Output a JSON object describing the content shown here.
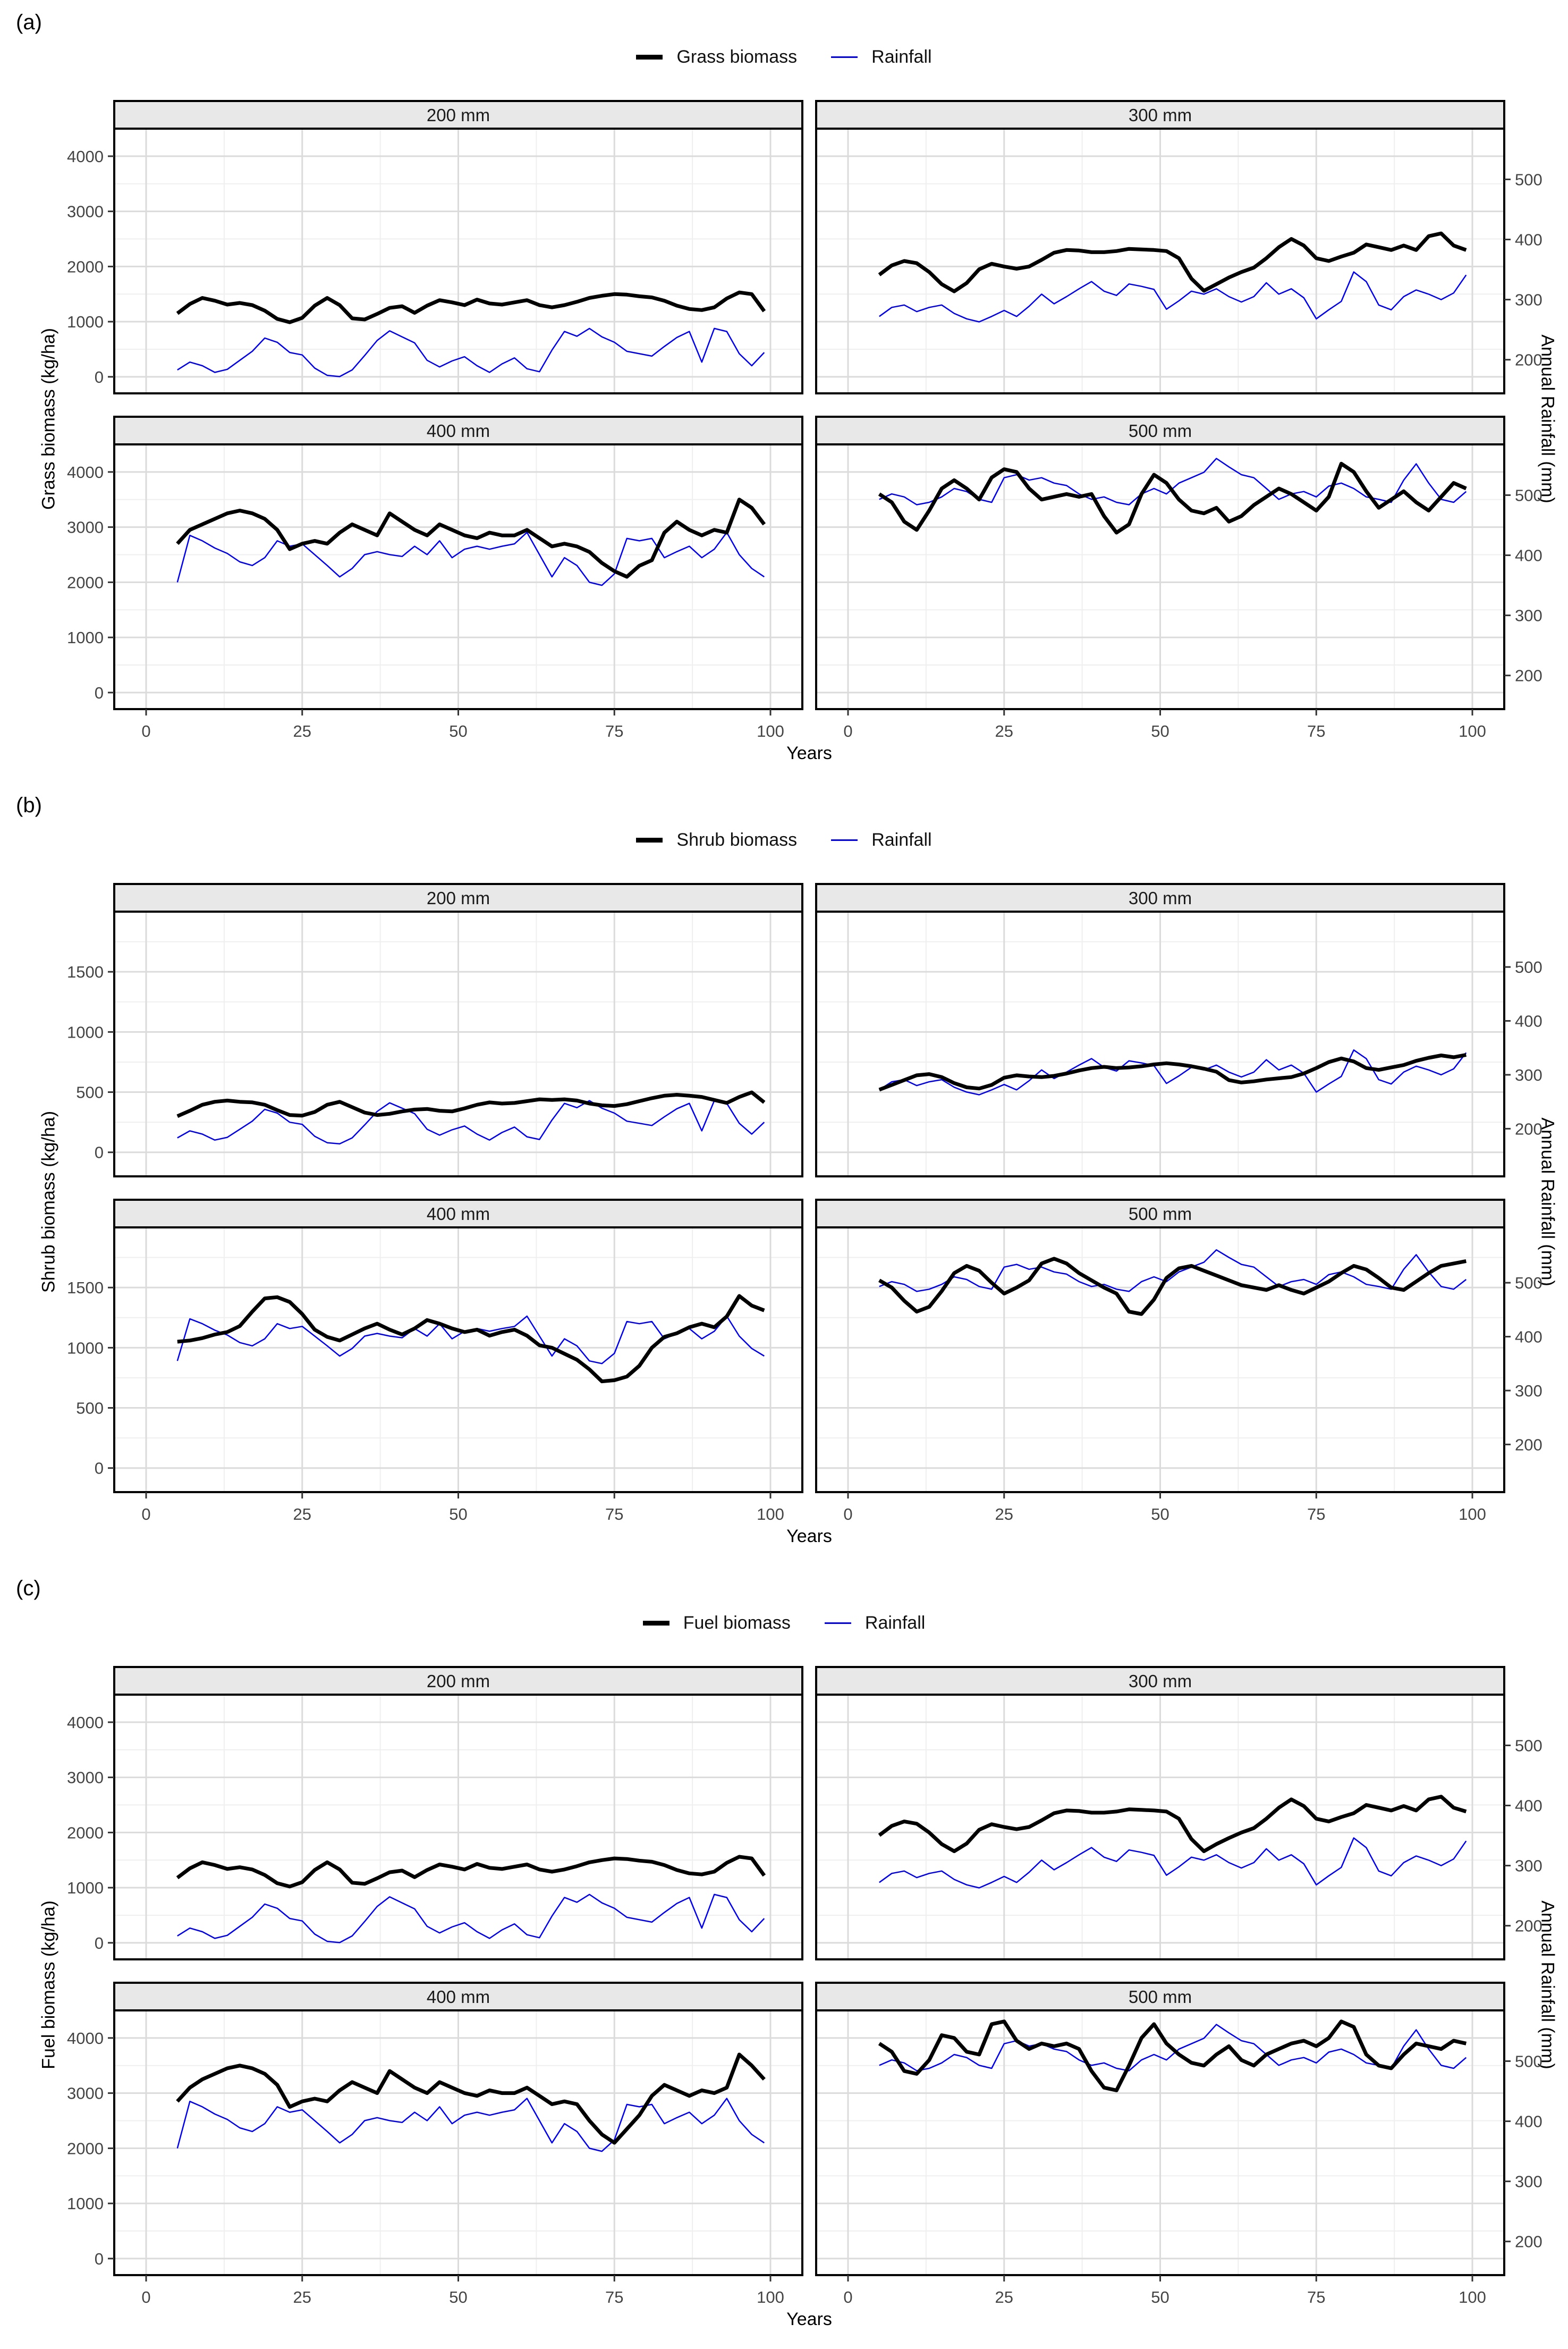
{
  "chart_data": {
    "type": "line",
    "x": {
      "label": "Years",
      "ticks": [
        0,
        25,
        50,
        75,
        100
      ],
      "range": [
        0,
        100
      ]
    },
    "right_axis": {
      "label": "Annual Rainfall (mm)",
      "ticks": [
        200,
        300,
        400,
        500
      ]
    },
    "legend_rainfall": "Rainfall",
    "facet_order": [
      "200 mm",
      "300 mm",
      "400 mm",
      "500 mm"
    ],
    "colors": {
      "biomass": "#000000",
      "rainfall": "#0000EE"
    },
    "grid": {
      "major": "#DBDBDB",
      "minor": "#EFEFEF",
      "strip_bg": "#E8E8E8",
      "tick_text": "#444444"
    },
    "years": [
      5,
      7,
      9,
      11,
      13,
      15,
      17,
      19,
      21,
      23,
      25,
      27,
      29,
      31,
      33,
      35,
      37,
      39,
      41,
      43,
      45,
      47,
      49,
      51,
      53,
      55,
      57,
      59,
      61,
      63,
      65,
      67,
      69,
      71,
      73,
      75,
      77,
      79,
      81,
      83,
      85,
      87,
      89,
      91,
      93,
      95,
      97,
      99
    ],
    "rainfall_mm": {
      "200 mm": [
        183,
        196,
        190,
        179,
        184,
        199,
        214,
        236,
        229,
        212,
        208,
        186,
        174,
        172,
        183,
        207,
        232,
        248,
        238,
        228,
        199,
        188,
        198,
        205,
        190,
        179,
        193,
        203,
        185,
        180,
        216,
        247,
        239,
        252,
        238,
        229,
        214,
        210,
        206,
        222,
        237,
        247,
        196,
        252,
        247,
        210,
        190,
        212
      ],
      "300 mm": [
        272,
        287,
        291,
        280,
        287,
        291,
        277,
        268,
        263,
        272,
        282,
        272,
        289,
        309,
        293,
        305,
        318,
        330,
        314,
        307,
        326,
        322,
        317,
        284,
        298,
        314,
        309,
        318,
        305,
        296,
        305,
        328,
        309,
        318,
        303,
        268,
        283,
        297,
        346,
        330,
        291,
        283,
        305,
        316,
        309,
        300,
        311,
        341
      ],
      "400 mm": [
        355,
        433,
        424,
        412,
        403,
        389,
        383,
        396,
        424,
        415,
        419,
        401,
        383,
        364,
        378,
        401,
        406,
        401,
        398,
        415,
        401,
        424,
        396,
        410,
        415,
        410,
        415,
        419,
        438,
        401,
        364,
        396,
        383,
        355,
        350,
        369,
        428,
        424,
        428,
        396,
        406,
        415,
        396,
        410,
        438,
        401,
        378,
        364
      ],
      "500 mm": [
        493,
        502,
        497,
        484,
        488,
        497,
        511,
        506,
        493,
        488,
        529,
        534,
        525,
        529,
        520,
        516,
        502,
        493,
        497,
        488,
        484,
        502,
        511,
        502,
        520,
        529,
        538,
        561,
        547,
        534,
        529,
        511,
        493,
        502,
        506,
        497,
        515,
        520,
        511,
        497,
        493,
        488,
        525,
        552,
        520,
        493,
        488,
        506
      ]
    },
    "panels": [
      {
        "label": "(a)",
        "series_name": "Grass biomass",
        "ylabel": "Grass biomass (kg/ha)",
        "left_ticks": [
          0,
          1000,
          2000,
          3000,
          4000
        ],
        "left_range": [
          -300,
          4500
        ],
        "rain_transform": {
          "slope": 10.9,
          "intercept": -1870
        },
        "biomass": {
          "200 mm": [
            1150,
            1320,
            1430,
            1380,
            1310,
            1340,
            1300,
            1200,
            1050,
            990,
            1070,
            1290,
            1430,
            1300,
            1060,
            1040,
            1140,
            1250,
            1280,
            1160,
            1290,
            1390,
            1350,
            1300,
            1400,
            1330,
            1310,
            1350,
            1390,
            1300,
            1260,
            1300,
            1360,
            1430,
            1470,
            1500,
            1490,
            1460,
            1440,
            1380,
            1290,
            1230,
            1210,
            1260,
            1420,
            1530,
            1500,
            1190
          ],
          "300 mm": [
            1850,
            2020,
            2100,
            2060,
            1900,
            1680,
            1550,
            1700,
            1950,
            2050,
            2000,
            1960,
            2000,
            2120,
            2250,
            2300,
            2290,
            2260,
            2260,
            2280,
            2320,
            2310,
            2300,
            2280,
            2150,
            1780,
            1560,
            1680,
            1800,
            1900,
            1980,
            2150,
            2350,
            2500,
            2380,
            2150,
            2100,
            2180,
            2250,
            2400,
            2350,
            2300,
            2380,
            2300,
            2550,
            2600,
            2380,
            2300
          ],
          "400 mm": [
            2700,
            2950,
            3050,
            3150,
            3250,
            3300,
            3250,
            3150,
            2950,
            2600,
            2700,
            2750,
            2700,
            2900,
            3050,
            2950,
            2850,
            3250,
            3100,
            2950,
            2850,
            3050,
            2950,
            2850,
            2800,
            2900,
            2850,
            2850,
            2950,
            2800,
            2650,
            2700,
            2650,
            2550,
            2350,
            2200,
            2100,
            2300,
            2400,
            2900,
            3100,
            2950,
            2850,
            2950,
            2900,
            3500,
            3350,
            3050
          ],
          "500 mm": [
            3600,
            3450,
            3100,
            2950,
            3300,
            3700,
            3850,
            3700,
            3500,
            3900,
            4050,
            4000,
            3700,
            3500,
            3550,
            3600,
            3550,
            3600,
            3200,
            2900,
            3050,
            3600,
            3950,
            3800,
            3500,
            3300,
            3250,
            3350,
            3100,
            3200,
            3400,
            3550,
            3700,
            3600,
            3450,
            3300,
            3550,
            4150,
            4000,
            3650,
            3350,
            3500,
            3650,
            3450,
            3300,
            3550,
            3800,
            3700
          ]
        }
      },
      {
        "label": "(b)",
        "series_name": "Shrub biomass",
        "ylabel": "Shrub biomass (kg/ha)",
        "left_ticks": [
          0,
          500,
          1000,
          1500
        ],
        "left_range": [
          -200,
          2000
        ],
        "rain_transform": {
          "slope": 4.48,
          "intercept": -700
        },
        "biomass": {
          "200 mm": [
            300,
            345,
            395,
            420,
            430,
            420,
            415,
            395,
            350,
            310,
            305,
            335,
            395,
            420,
            375,
            330,
            310,
            320,
            340,
            355,
            360,
            345,
            340,
            365,
            395,
            415,
            405,
            410,
            425,
            440,
            435,
            440,
            430,
            405,
            390,
            385,
            400,
            425,
            450,
            470,
            478,
            470,
            460,
            435,
            410,
            460,
            498,
            415
          ],
          "300 mm": [
            520,
            560,
            600,
            640,
            650,
            625,
            575,
            540,
            530,
            560,
            620,
            640,
            630,
            625,
            635,
            655,
            680,
            700,
            710,
            700,
            705,
            715,
            730,
            740,
            730,
            715,
            695,
            670,
            600,
            580,
            590,
            605,
            615,
            625,
            655,
            700,
            750,
            780,
            755,
            700,
            685,
            705,
            725,
            760,
            785,
            805,
            790,
            810
          ],
          "400 mm": [
            1050,
            1060,
            1080,
            1110,
            1130,
            1180,
            1300,
            1410,
            1420,
            1380,
            1280,
            1150,
            1090,
            1060,
            1110,
            1160,
            1200,
            1150,
            1110,
            1160,
            1230,
            1200,
            1160,
            1130,
            1150,
            1100,
            1130,
            1150,
            1100,
            1020,
            1000,
            950,
            900,
            820,
            720,
            730,
            760,
            850,
            1000,
            1090,
            1120,
            1170,
            1200,
            1170,
            1260,
            1430,
            1350,
            1310
          ],
          "500 mm": [
            1560,
            1500,
            1390,
            1300,
            1340,
            1470,
            1620,
            1680,
            1640,
            1540,
            1450,
            1500,
            1560,
            1700,
            1740,
            1700,
            1620,
            1560,
            1500,
            1450,
            1300,
            1280,
            1400,
            1580,
            1660,
            1680,
            1640,
            1600,
            1560,
            1520,
            1500,
            1480,
            1520,
            1480,
            1450,
            1500,
            1550,
            1620,
            1680,
            1650,
            1580,
            1500,
            1480,
            1550,
            1620,
            1680,
            1700,
            1720
          ]
        }
      },
      {
        "label": "(c)",
        "series_name": "Fuel biomass",
        "ylabel": "Fuel biomass (kg/ha)",
        "left_ticks": [
          0,
          1000,
          2000,
          3000,
          4000
        ],
        "left_range": [
          -300,
          4500
        ],
        "rain_transform": {
          "slope": 10.9,
          "intercept": -1870
        },
        "biomass": {
          "200 mm": [
            1180,
            1350,
            1460,
            1410,
            1340,
            1370,
            1330,
            1230,
            1080,
            1020,
            1100,
            1320,
            1460,
            1330,
            1090,
            1070,
            1170,
            1280,
            1310,
            1190,
            1320,
            1420,
            1380,
            1330,
            1430,
            1360,
            1340,
            1380,
            1420,
            1330,
            1290,
            1330,
            1390,
            1460,
            1500,
            1530,
            1520,
            1490,
            1470,
            1410,
            1320,
            1260,
            1240,
            1290,
            1450,
            1560,
            1530,
            1220
          ],
          "300 mm": [
            1950,
            2120,
            2200,
            2160,
            2000,
            1790,
            1660,
            1800,
            2050,
            2150,
            2100,
            2060,
            2100,
            2220,
            2350,
            2400,
            2390,
            2360,
            2360,
            2380,
            2420,
            2410,
            2400,
            2380,
            2250,
            1880,
            1660,
            1790,
            1900,
            2000,
            2080,
            2250,
            2450,
            2600,
            2480,
            2250,
            2200,
            2280,
            2350,
            2500,
            2450,
            2400,
            2480,
            2400,
            2600,
            2650,
            2450,
            2380
          ],
          "400 mm": [
            2850,
            3100,
            3250,
            3350,
            3450,
            3500,
            3450,
            3350,
            3150,
            2750,
            2850,
            2900,
            2850,
            3050,
            3200,
            3100,
            3000,
            3400,
            3250,
            3100,
            3000,
            3200,
            3100,
            3000,
            2950,
            3050,
            3000,
            3000,
            3100,
            2950,
            2800,
            2850,
            2800,
            2500,
            2250,
            2100,
            2350,
            2600,
            2950,
            3150,
            3050,
            2950,
            3050,
            3000,
            3100,
            3700,
            3500,
            3250
          ],
          "500 mm": [
            3900,
            3750,
            3400,
            3350,
            3600,
            4050,
            4000,
            3750,
            3700,
            4250,
            4300,
            3950,
            3800,
            3900,
            3850,
            3900,
            3800,
            3400,
            3100,
            3050,
            3500,
            4000,
            4250,
            3900,
            3700,
            3550,
            3500,
            3700,
            3850,
            3600,
            3500,
            3700,
            3800,
            3900,
            3950,
            3850,
            4000,
            4300,
            4200,
            3700,
            3500,
            3450,
            3700,
            3900,
            3850,
            3800,
            3950,
            3900
          ]
        }
      }
    ]
  }
}
